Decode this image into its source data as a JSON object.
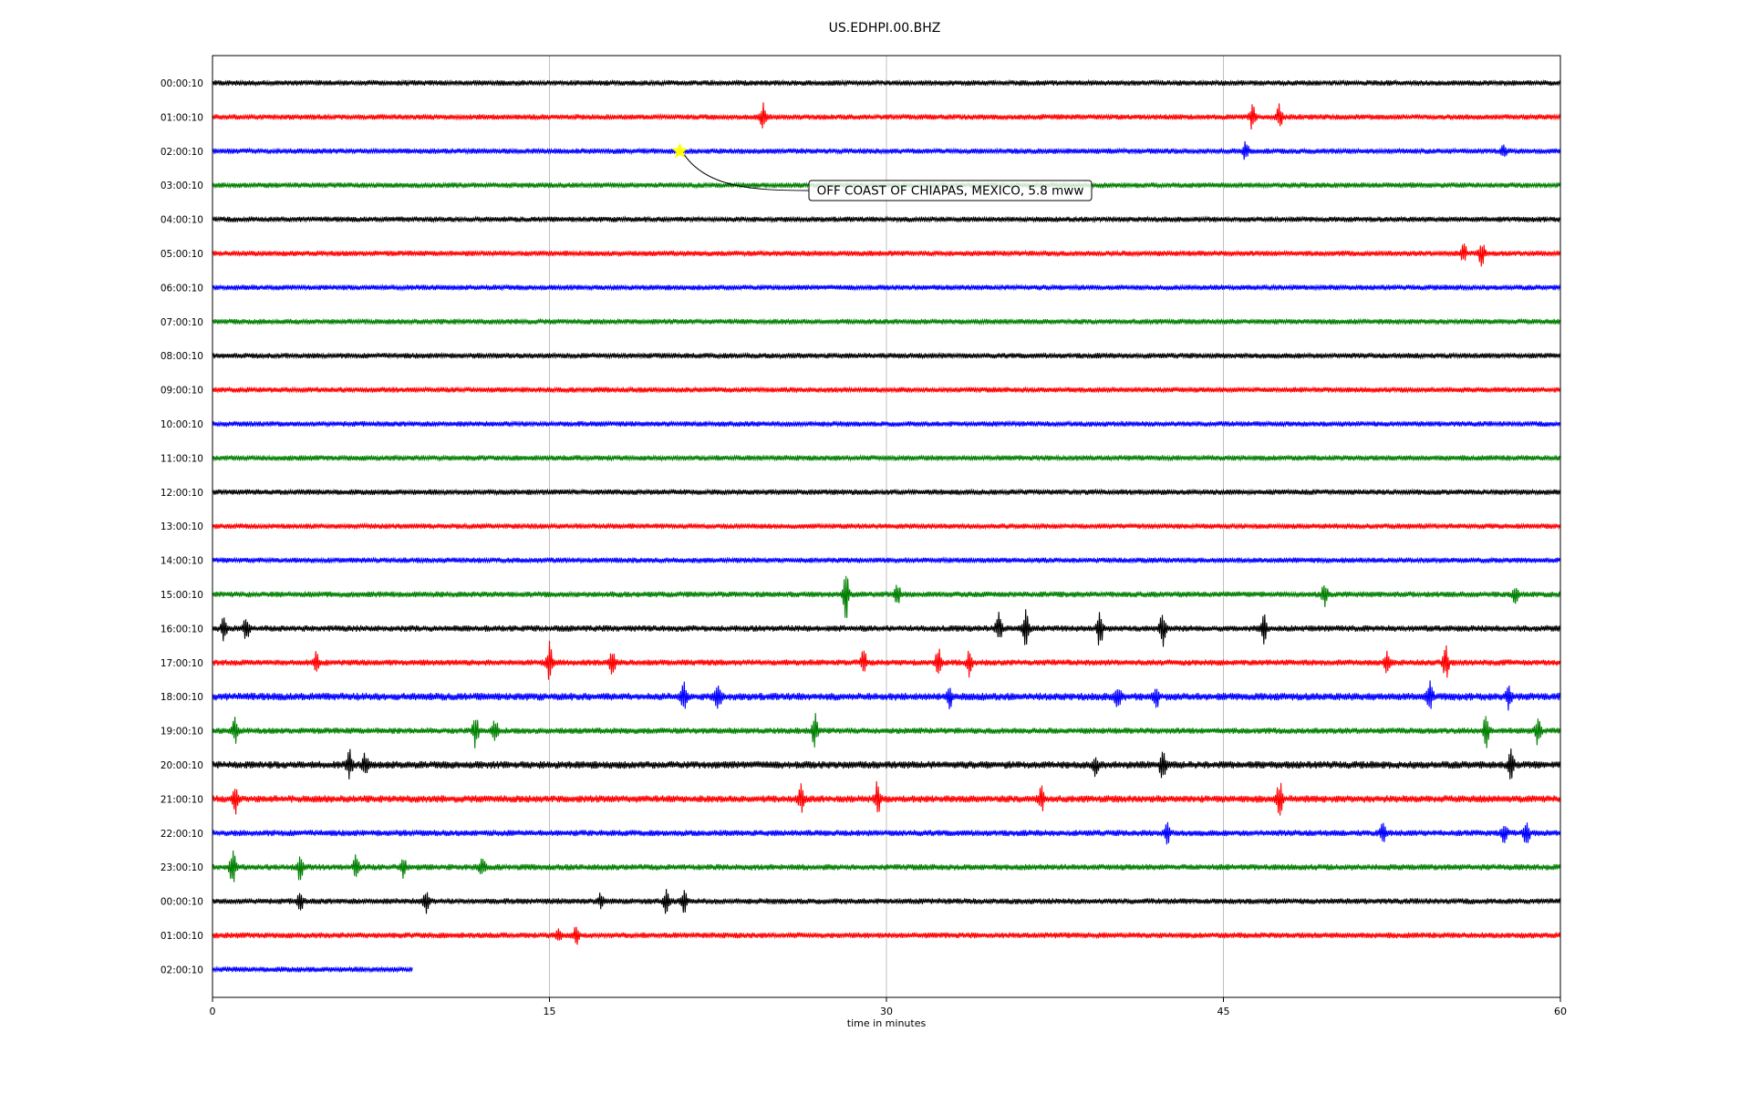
{
  "chart_data": {
    "type": "line",
    "title": "US.EDHPI.00.BHZ",
    "xlabel": "time in minutes",
    "ylabel": "",
    "xlim": [
      0,
      60
    ],
    "xticks": [
      0,
      15,
      30,
      45,
      60
    ],
    "grid": "vertical lines at 15, 30, 45",
    "legend": "none",
    "row_colors": [
      "#000000",
      "#ff0000",
      "#0000ff",
      "#008000"
    ],
    "rows": [
      {
        "label": "00:00:10",
        "amp": 3.0,
        "bursts": []
      },
      {
        "label": "01:00:10",
        "amp": 3.0,
        "bursts": [
          [
            24.5,
            14
          ],
          [
            46.3,
            14
          ],
          [
            47.5,
            13
          ]
        ]
      },
      {
        "label": "02:00:10",
        "amp": 3.0,
        "bursts": [
          [
            46.0,
            11
          ],
          [
            57.5,
            7
          ]
        ]
      },
      {
        "label": "03:00:10",
        "amp": 3.0,
        "bursts": []
      },
      {
        "label": "04:00:10",
        "amp": 3.0,
        "bursts": []
      },
      {
        "label": "05:00:10",
        "amp": 3.0,
        "bursts": [
          [
            55.7,
            10
          ],
          [
            56.5,
            14
          ]
        ]
      },
      {
        "label": "06:00:10",
        "amp": 3.0,
        "bursts": []
      },
      {
        "label": "07:00:10",
        "amp": 3.0,
        "bursts": []
      },
      {
        "label": "08:00:10",
        "amp": 3.0,
        "bursts": []
      },
      {
        "label": "09:00:10",
        "amp": 3.0,
        "bursts": []
      },
      {
        "label": "10:00:10",
        "amp": 3.0,
        "bursts": []
      },
      {
        "label": "11:00:10",
        "amp": 3.0,
        "bursts": []
      },
      {
        "label": "12:00:10",
        "amp": 3.0,
        "bursts": []
      },
      {
        "label": "13:00:10",
        "amp": 3.0,
        "bursts": []
      },
      {
        "label": "14:00:10",
        "amp": 3.0,
        "bursts": []
      },
      {
        "label": "15:00:10",
        "amp": 3.2,
        "bursts": [
          [
            28.2,
            26
          ],
          [
            30.5,
            12
          ],
          [
            49.5,
            12
          ],
          [
            58.0,
            9
          ]
        ]
      },
      {
        "label": "16:00:10",
        "amp": 3.5,
        "bursts": [
          [
            0.5,
            11
          ],
          [
            1.5,
            12
          ],
          [
            35.0,
            18
          ],
          [
            36.2,
            26
          ],
          [
            39.5,
            20
          ],
          [
            42.3,
            18
          ],
          [
            46.8,
            14
          ]
        ]
      },
      {
        "label": "17:00:10",
        "amp": 3.4,
        "bursts": [
          [
            4.6,
            10
          ],
          [
            15.0,
            22
          ],
          [
            17.8,
            14
          ],
          [
            29.0,
            14
          ],
          [
            32.3,
            18
          ],
          [
            33.7,
            14
          ],
          [
            52.3,
            12
          ],
          [
            54.9,
            18
          ]
        ]
      },
      {
        "label": "18:00:10",
        "amp": 4.2,
        "bursts": [
          [
            21.0,
            16
          ],
          [
            22.5,
            18
          ],
          [
            32.8,
            12
          ],
          [
            40.3,
            14
          ],
          [
            42.0,
            12
          ],
          [
            54.2,
            14
          ],
          [
            57.7,
            12
          ]
        ]
      },
      {
        "label": "19:00:10",
        "amp": 3.4,
        "bursts": [
          [
            1.0,
            14
          ],
          [
            11.7,
            18
          ],
          [
            12.6,
            12
          ],
          [
            26.8,
            18
          ],
          [
            56.7,
            18
          ],
          [
            59.0,
            16
          ]
        ]
      },
      {
        "label": "20:00:10",
        "amp": 4.2,
        "bursts": [
          [
            6.1,
            14
          ],
          [
            6.8,
            11
          ],
          [
            39.3,
            10
          ],
          [
            42.3,
            18
          ],
          [
            57.8,
            14
          ]
        ]
      },
      {
        "label": "21:00:10",
        "amp": 4.0,
        "bursts": [
          [
            1.0,
            16
          ],
          [
            26.2,
            14
          ],
          [
            29.6,
            18
          ],
          [
            36.9,
            14
          ],
          [
            47.5,
            18
          ]
        ]
      },
      {
        "label": "22:00:10",
        "amp": 3.4,
        "bursts": [
          [
            42.5,
            11
          ],
          [
            52.1,
            16
          ],
          [
            57.5,
            12
          ],
          [
            58.5,
            14
          ]
        ]
      },
      {
        "label": "23:00:10",
        "amp": 3.4,
        "bursts": [
          [
            0.9,
            20
          ],
          [
            3.9,
            14
          ],
          [
            6.4,
            14
          ],
          [
            8.5,
            12
          ],
          [
            12.0,
            12
          ]
        ]
      },
      {
        "label": "00:00:10",
        "amp": 3.2,
        "bursts": [
          [
            3.9,
            12
          ],
          [
            9.5,
            14
          ],
          [
            17.3,
            10
          ],
          [
            20.2,
            12
          ],
          [
            21.0,
            11
          ]
        ]
      },
      {
        "label": "01:00:10",
        "amp": 3.2,
        "bursts": [
          [
            15.4,
            9
          ],
          [
            16.2,
            10
          ]
        ]
      },
      {
        "label": "02:00:10",
        "amp": 3.0,
        "bursts": [],
        "end": 8.9
      }
    ],
    "event": {
      "row": 2,
      "time": 20.8,
      "marker": "star",
      "marker_color": "#ffff00",
      "text": "OFF COAST OF CHIAPAS, MEXICO, 5.8 mww",
      "box_fill": "#ffffff",
      "line_color": "#000000"
    }
  }
}
